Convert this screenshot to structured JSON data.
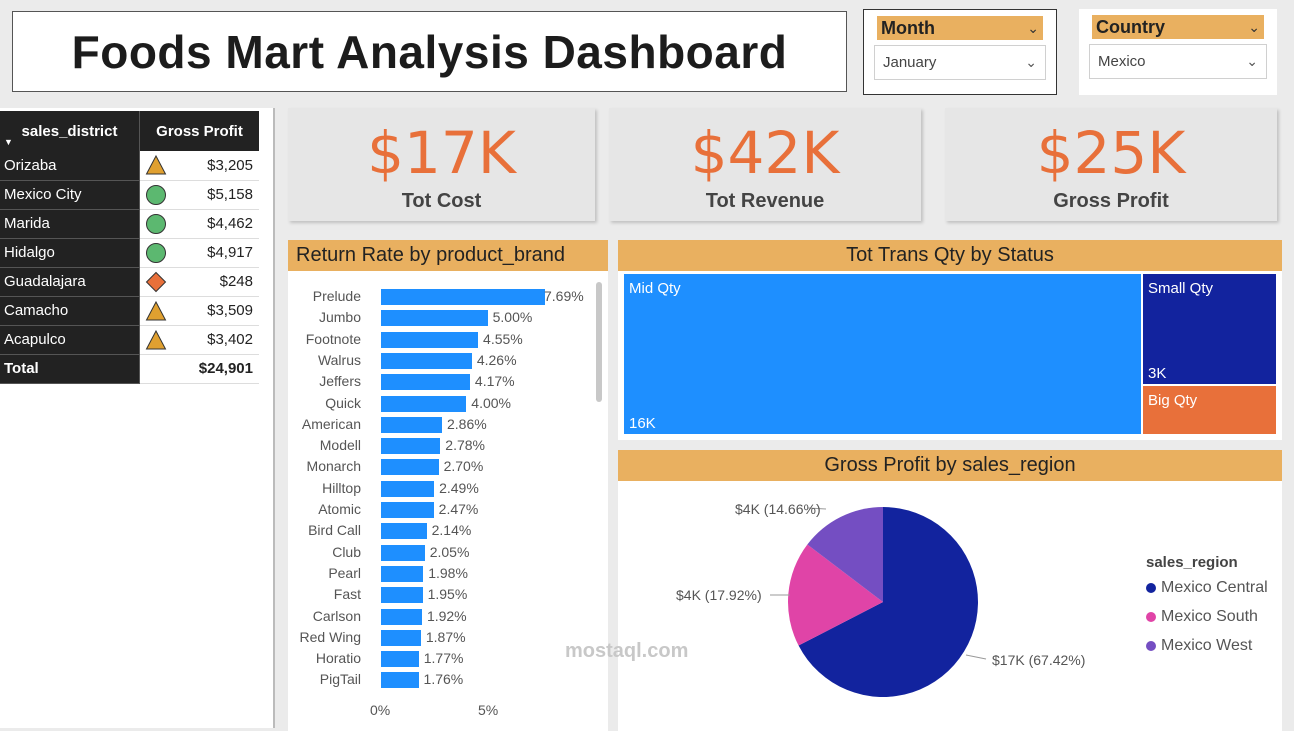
{
  "title": "Foods Mart Analysis Dashboard",
  "slicers": {
    "month": {
      "label": "Month",
      "value": "January"
    },
    "country": {
      "label": "Country",
      "value": "Mexico"
    }
  },
  "district_table": {
    "headers": [
      "sales_district",
      "Gross Profit"
    ],
    "rows": [
      {
        "name": "Orizaba",
        "value": "$3,205",
        "indicator": "triangle"
      },
      {
        "name": "Mexico City",
        "value": "$5,158",
        "indicator": "circle"
      },
      {
        "name": "Marida",
        "value": "$4,462",
        "indicator": "circle"
      },
      {
        "name": "Hidalgo",
        "value": "$4,917",
        "indicator": "circle"
      },
      {
        "name": "Guadalajara",
        "value": "$248",
        "indicator": "diamond"
      },
      {
        "name": "Camacho",
        "value": "$3,509",
        "indicator": "triangle"
      },
      {
        "name": "Acapulco",
        "value": "$3,402",
        "indicator": "triangle"
      }
    ],
    "total_label": "Total",
    "total_value": "$24,901"
  },
  "kpis": [
    {
      "value": "$17K",
      "label": "Tot Cost"
    },
    {
      "value": "$42K",
      "label": "Tot Revenue"
    },
    {
      "value": "$25K",
      "label": "Gross Profit"
    }
  ],
  "colors": {
    "accent": "#e9b060",
    "kpi": "#e8703a",
    "bar": "#1e8fff",
    "mexico_central": "#12239e",
    "mexico_south": "#e044a7",
    "mexico_west": "#744ec2",
    "indicator_green": "#5cb870",
    "indicator_yellow": "#e0a030",
    "indicator_red": "#e8703a"
  },
  "chart_data": [
    {
      "type": "bar",
      "title": "Return Rate by product_brand",
      "orientation": "horizontal",
      "categories": [
        "Prelude",
        "Jumbo",
        "Footnote",
        "Walrus",
        "Jeffers",
        "Quick",
        "American",
        "Modell",
        "Monarch",
        "Hilltop",
        "Atomic",
        "Bird Call",
        "Club",
        "Pearl",
        "Fast",
        "Carlson",
        "Red Wing",
        "Horatio",
        "PigTail"
      ],
      "values": [
        7.69,
        5.0,
        4.55,
        4.26,
        4.17,
        4.0,
        2.86,
        2.78,
        2.7,
        2.49,
        2.47,
        2.14,
        2.05,
        1.98,
        1.95,
        1.92,
        1.87,
        1.77,
        1.76
      ],
      "value_labels": [
        "7.69%",
        "5.00%",
        "4.55%",
        "4.26%",
        "4.17%",
        "4.00%",
        "2.86%",
        "2.78%",
        "2.70%",
        "2.49%",
        "2.47%",
        "2.14%",
        "2.05%",
        "1.98%",
        "1.95%",
        "1.92%",
        "1.87%",
        "1.77%",
        "1.76%"
      ],
      "x_ticks": [
        "0%",
        "5%"
      ],
      "xlim": [
        0,
        8
      ]
    },
    {
      "type": "treemap",
      "title": "Tot Trans Qty by Status",
      "items": [
        {
          "label": "Mid Qty",
          "value_label": "16K",
          "value": 16,
          "color": "#1e8fff"
        },
        {
          "label": "Small Qty",
          "value_label": "3K",
          "value": 3,
          "color": "#12239e"
        },
        {
          "label": "Big Qty",
          "value_label": "",
          "value": 1.2,
          "color": "#e8703a"
        }
      ]
    },
    {
      "type": "pie",
      "title": "Gross Profit by sales_region",
      "legend_title": "sales_region",
      "slices": [
        {
          "name": "Mexico Central",
          "value": 67.42,
          "label": "$17K (67.42%)"
        },
        {
          "name": "Mexico South",
          "value": 17.92,
          "label": "$4K (17.92%)"
        },
        {
          "name": "Mexico West",
          "value": 14.66,
          "label": "$4K (14.66%)"
        }
      ]
    }
  ],
  "watermark": "mostaql.com"
}
